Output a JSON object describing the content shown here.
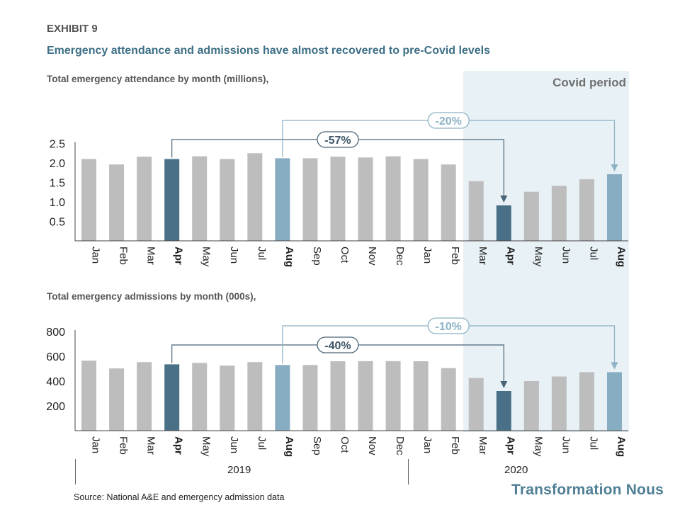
{
  "header": {
    "exhibit": "EXHIBIT 9",
    "title": "Emergency attendance and admissions have almost recovered to pre-Covid levels"
  },
  "covid_label": "Covid period",
  "years": [
    "2019",
    "2020"
  ],
  "source": "Source: National A&E and emergency admission data",
  "brand": "Transformation Nous",
  "colors": {
    "bar_default": "#bdbdbd",
    "bar_dark": "#4a7088",
    "bar_light": "#87adc2",
    "covid_shade": "#e8f1f5",
    "title": "#3d6f86"
  },
  "chart_data": [
    {
      "type": "bar",
      "title": "Total emergency attendance by month (millions),",
      "categories": [
        "Jan",
        "Feb",
        "Mar",
        "Apr",
        "May",
        "Jun",
        "Jul",
        "Aug",
        "Sep",
        "Oct",
        "Nov",
        "Dec",
        "Jan",
        "Feb",
        "Mar",
        "Apr",
        "May",
        "Jun",
        "Jul",
        "Aug"
      ],
      "bold_categories": [
        3,
        7,
        15,
        19
      ],
      "values": [
        2.1,
        1.96,
        2.16,
        2.1,
        2.17,
        2.1,
        2.25,
        2.12,
        2.12,
        2.16,
        2.14,
        2.17,
        2.1,
        1.96,
        1.53,
        0.91,
        1.26,
        1.41,
        1.58,
        1.71
      ],
      "highlight_dark": [
        3,
        15
      ],
      "highlight_light": [
        7,
        19
      ],
      "ylim": [
        0,
        2.5
      ],
      "yticks": [
        "0.5",
        "1.0",
        "1.5",
        "2.0",
        "2.5"
      ],
      "annotations": [
        {
          "label": "-57%",
          "from": 3,
          "to": 15,
          "style": "dark"
        },
        {
          "label": "-20%",
          "from": 7,
          "to": 19,
          "style": "light"
        }
      ],
      "grid": false
    },
    {
      "type": "bar",
      "title": "Total emergency admissions by month (000s),",
      "categories": [
        "Jan",
        "Feb",
        "Mar",
        "Apr",
        "May",
        "Jun",
        "Jul",
        "Aug",
        "Sep",
        "Oct",
        "Nov",
        "Dec",
        "Jan",
        "Feb",
        "Mar",
        "Apr",
        "May",
        "Jun",
        "Jul",
        "Aug"
      ],
      "bold_categories": [
        3,
        7,
        15,
        19
      ],
      "values": [
        565,
        502,
        553,
        535,
        547,
        525,
        553,
        530,
        530,
        560,
        561,
        561,
        560,
        505,
        425,
        320,
        400,
        437,
        472,
        472
      ],
      "highlight_dark": [
        3,
        15
      ],
      "highlight_light": [
        7,
        19
      ],
      "ylim": [
        0,
        800
      ],
      "yticks": [
        "200",
        "400",
        "600",
        "800"
      ],
      "annotations": [
        {
          "label": "-40%",
          "from": 3,
          "to": 15,
          "style": "dark"
        },
        {
          "label": "-10%",
          "from": 7,
          "to": 19,
          "style": "light"
        }
      ],
      "grid": false
    }
  ]
}
